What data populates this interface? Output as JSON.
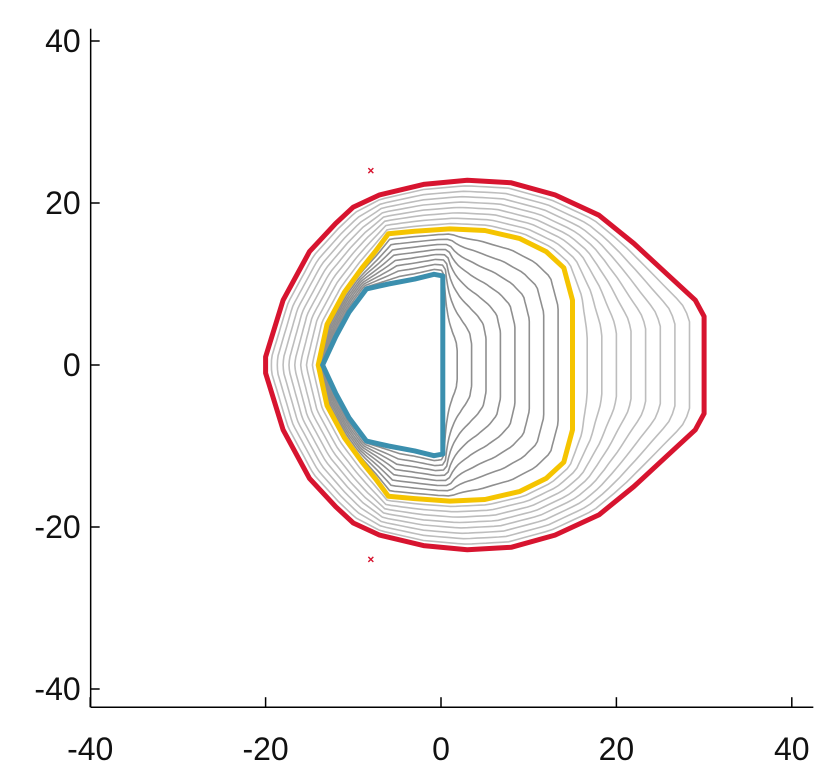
{
  "chart_data": {
    "type": "line",
    "title": "",
    "xlabel": "",
    "ylabel": "",
    "xlim": [
      -42,
      42
    ],
    "ylim": [
      -42,
      42
    ],
    "grid": false,
    "legend": "none",
    "xticks": [
      -40,
      -20,
      0,
      20,
      40
    ],
    "yticks": [
      -40,
      -20,
      0,
      20,
      40
    ],
    "xtick_labels": [
      "-40",
      "-20",
      "0",
      "20",
      "40"
    ],
    "ytick_labels": [
      "40",
      "20",
      "0",
      "-20",
      "-40"
    ],
    "colors": {
      "inner": "#3b8fae",
      "middle": "#f5c400",
      "outer": "#d7142f",
      "intermediate": "#a8a8a8",
      "markers": "#d7142f"
    },
    "intermediate_contours": {
      "count": 16,
      "description_free_note": ""
    },
    "series": [
      {
        "key": "inner",
        "color": "#3b8fae",
        "points": [
          [
            0.2,
            11
          ],
          [
            -0.8,
            11.2
          ],
          [
            -3,
            10.6
          ],
          [
            -6,
            10
          ],
          [
            -8.5,
            9.4
          ],
          [
            -10.5,
            6.5
          ],
          [
            -12,
            3.5
          ],
          [
            -13.5,
            0
          ],
          [
            -12,
            -3.5
          ],
          [
            -10.5,
            -6.5
          ],
          [
            -8.5,
            -9.4
          ],
          [
            -6,
            -10
          ],
          [
            -3,
            -10.6
          ],
          [
            -0.8,
            -11.2
          ],
          [
            0.2,
            -11
          ],
          [
            0.2,
            0
          ]
        ]
      },
      {
        "key": "middle",
        "color": "#f5c400",
        "points": [
          [
            1,
            16.8
          ],
          [
            5,
            16.6
          ],
          [
            9,
            15.6
          ],
          [
            12,
            14
          ],
          [
            14,
            12
          ],
          [
            15,
            8
          ],
          [
            15,
            0
          ],
          [
            15,
            -8
          ],
          [
            14,
            -12
          ],
          [
            12,
            -14
          ],
          [
            9,
            -15.6
          ],
          [
            5,
            -16.6
          ],
          [
            1,
            -16.8
          ],
          [
            -3,
            -16.5
          ],
          [
            -6,
            -16.2
          ],
          [
            -7.5,
            -14
          ],
          [
            -9,
            -12
          ],
          [
            -11,
            -9
          ],
          [
            -13,
            -5
          ],
          [
            -14,
            0
          ],
          [
            -13,
            5
          ],
          [
            -11,
            9
          ],
          [
            -9,
            12
          ],
          [
            -7.5,
            14
          ],
          [
            -6,
            16.2
          ],
          [
            -3,
            16.5
          ]
        ]
      },
      {
        "key": "outer",
        "color": "#d7142f",
        "points": [
          [
            3,
            22.8
          ],
          [
            8,
            22.5
          ],
          [
            13,
            21
          ],
          [
            18,
            18.5
          ],
          [
            22,
            15
          ],
          [
            26,
            11
          ],
          [
            29,
            8
          ],
          [
            30,
            6
          ],
          [
            30,
            -6
          ],
          [
            29,
            -8
          ],
          [
            26,
            -11
          ],
          [
            22,
            -15
          ],
          [
            18,
            -18.5
          ],
          [
            13,
            -21
          ],
          [
            8,
            -22.5
          ],
          [
            3,
            -22.8
          ],
          [
            -2,
            -22.3
          ],
          [
            -7,
            -21
          ],
          [
            -10,
            -19.5
          ],
          [
            -12,
            -17.5
          ],
          [
            -15,
            -14
          ],
          [
            -18,
            -8
          ],
          [
            -20,
            -1
          ],
          [
            -20,
            1
          ],
          [
            -18,
            8
          ],
          [
            -15,
            14
          ],
          [
            -12,
            17.5
          ],
          [
            -10,
            19.5
          ],
          [
            -7,
            21
          ],
          [
            -2,
            22.3
          ]
        ]
      }
    ],
    "markers": [
      {
        "x": -8,
        "y": 24
      },
      {
        "x": -8,
        "y": -24
      }
    ]
  }
}
